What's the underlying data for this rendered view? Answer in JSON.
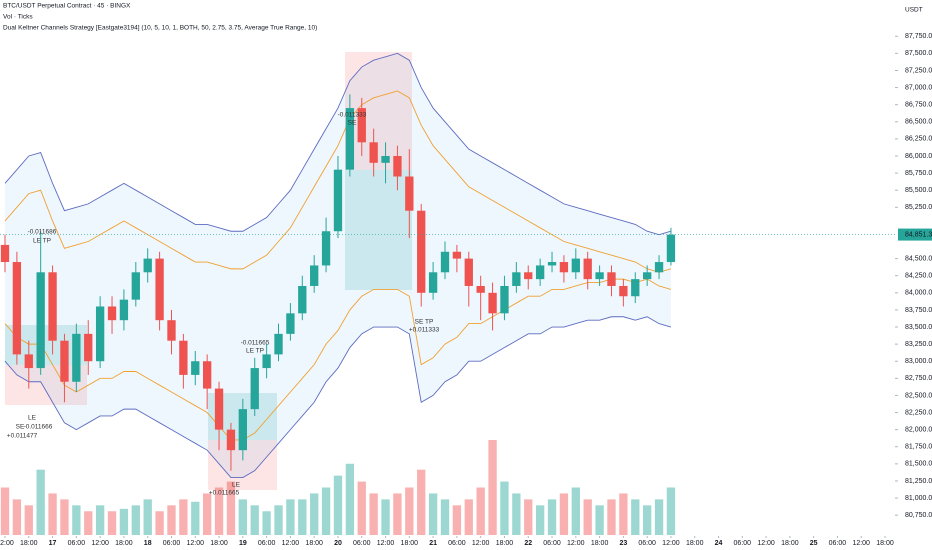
{
  "chart_data": {
    "type": "candlestick",
    "title": "BTC/USDT Perpetual Contract · 45 · BINGX",
    "indicators": [
      "Vol · Ticks",
      "Dual Keltner Channels Strategy [Eastgate3194] (10, 5, 10, 1, BOTH, 50, 2.75, 3.75, Average True Range, 10)"
    ],
    "currency": "USDT",
    "up_color": "#26a69a",
    "down_color": "#ef5350",
    "open": [
      84700,
      84450,
      83100,
      82900,
      84300,
      83300,
      82700,
      83400,
      83000,
      83800,
      83600,
      83900,
      84300,
      84500,
      83600,
      83300,
      82800,
      83000,
      82600,
      82000,
      81700,
      82300,
      82900,
      83100,
      83400,
      83700,
      84100,
      84400,
      84900,
      85800,
      86700,
      86200,
      85900,
      86000,
      85700,
      85200,
      84000,
      84300,
      84600,
      84500,
      84100,
      84000,
      83700,
      84100,
      84300,
      84200,
      84400,
      84450,
      84300,
      84500,
      84200,
      84300,
      84100,
      83950,
      84200,
      84300,
      84450
    ],
    "high": [
      84850,
      84600,
      83300,
      84900,
      84400,
      83400,
      83550,
      83600,
      83950,
      83950,
      84050,
      84450,
      84650,
      84600,
      83750,
      83400,
      83150,
      83100,
      82700,
      82100,
      82450,
      83050,
      83250,
      83550,
      83850,
      84250,
      84550,
      85100,
      86000,
      86900,
      86850,
      86400,
      86200,
      86150,
      86100,
      85300,
      84450,
      84750,
      84700,
      84600,
      84250,
      84150,
      84250,
      84450,
      84400,
      84500,
      84600,
      84550,
      84650,
      84600,
      84400,
      84400,
      84200,
      84300,
      84400,
      84550,
      84950
    ],
    "low": [
      84300,
      82950,
      82600,
      82800,
      83100,
      82400,
      82550,
      82800,
      82900,
      83400,
      83450,
      83800,
      84150,
      83450,
      83100,
      82600,
      82650,
      82300,
      81700,
      81400,
      81550,
      82200,
      82750,
      83000,
      83300,
      83600,
      84000,
      84300,
      84800,
      85700,
      86000,
      85700,
      85600,
      85500,
      84800,
      83800,
      83900,
      84200,
      84300,
      83800,
      83600,
      83450,
      83600,
      84000,
      84050,
      84100,
      84300,
      84150,
      84200,
      84050,
      84100,
      83950,
      83800,
      83850,
      84100,
      84200,
      84400
    ],
    "close": [
      84450,
      83100,
      82900,
      84300,
      83300,
      82700,
      83400,
      83000,
      83800,
      83600,
      83900,
      84300,
      84500,
      83600,
      83300,
      82800,
      83000,
      82600,
      82000,
      81700,
      82300,
      82900,
      83100,
      83400,
      83700,
      84100,
      84400,
      84900,
      85800,
      86700,
      86200,
      85900,
      86000,
      85700,
      85200,
      84000,
      84300,
      84600,
      84500,
      84100,
      84000,
      83700,
      84100,
      84300,
      84200,
      84400,
      84450,
      84300,
      84500,
      84200,
      84300,
      84100,
      83950,
      84200,
      84300,
      84450,
      84850
    ],
    "volume": [
      40,
      30,
      25,
      55,
      35,
      30,
      25,
      20,
      25,
      20,
      22,
      25,
      30,
      20,
      25,
      30,
      28,
      35,
      40,
      45,
      30,
      25,
      20,
      25,
      30,
      30,
      35,
      40,
      50,
      60,
      45,
      35,
      30,
      35,
      40,
      55,
      35,
      30,
      25,
      30,
      40,
      80,
      45,
      35,
      30,
      25,
      30,
      35,
      40,
      30,
      25,
      30,
      35,
      30,
      25,
      30,
      40
    ],
    "bands": [
      {
        "color": "#5c6bc0",
        "values": [
          85600,
          85800,
          86000,
          86050,
          85600,
          85200,
          85250,
          85300,
          85400,
          85500,
          85600,
          85500,
          85400,
          85300,
          85200,
          85100,
          85000,
          85000,
          84950,
          84900,
          84900,
          85000,
          85100,
          85300,
          85500,
          85800,
          86100,
          86400,
          86700,
          87100,
          87300,
          87400,
          87450,
          87500,
          87400,
          87000,
          86700,
          86500,
          86300,
          86100,
          86000,
          85900,
          85800,
          85700,
          85600,
          85500,
          85400,
          85300,
          85250,
          85200,
          85150,
          85100,
          85050,
          85000,
          84900,
          84850,
          84900
        ]
      },
      {
        "color": "#f0a030",
        "values": [
          85050,
          85250,
          85450,
          85500,
          85050,
          84650,
          84700,
          84750,
          84850,
          84950,
          85050,
          84950,
          84850,
          84750,
          84650,
          84550,
          84450,
          84450,
          84400,
          84350,
          84350,
          84450,
          84550,
          84750,
          84950,
          85250,
          85550,
          85850,
          86150,
          86550,
          86750,
          86850,
          86900,
          86950,
          86850,
          86450,
          86150,
          85950,
          85750,
          85550,
          85450,
          85350,
          85250,
          85150,
          85050,
          84950,
          84850,
          84750,
          84700,
          84650,
          84600,
          84550,
          84500,
          84450,
          84350,
          84300,
          84350
        ]
      },
      {
        "color": "#f0a030",
        "values": [
          83550,
          83350,
          83250,
          83250,
          82950,
          82650,
          82550,
          82650,
          82750,
          82750,
          82850,
          82850,
          82750,
          82650,
          82550,
          82450,
          82350,
          82250,
          82050,
          81850,
          81850,
          81950,
          82150,
          82350,
          82550,
          82750,
          82950,
          83250,
          83450,
          83750,
          83950,
          84050,
          84050,
          84050,
          83950,
          82950,
          83050,
          83250,
          83350,
          83550,
          83550,
          83650,
          83750,
          83850,
          83950,
          83950,
          84050,
          84050,
          84100,
          84150,
          84150,
          84200,
          84200,
          84150,
          84200,
          84100,
          84050
        ]
      },
      {
        "color": "#5c6bc0",
        "values": [
          83000,
          82800,
          82700,
          82700,
          82400,
          82100,
          82000,
          82100,
          82200,
          82200,
          82300,
          82300,
          82200,
          82100,
          82000,
          81900,
          81800,
          81700,
          81500,
          81300,
          81300,
          81400,
          81600,
          81800,
          82000,
          82200,
          82400,
          82700,
          82900,
          83200,
          83400,
          83500,
          83500,
          83500,
          83400,
          82400,
          82500,
          82700,
          82800,
          83000,
          83000,
          83100,
          83200,
          83300,
          83400,
          83400,
          83500,
          83500,
          83550,
          83600,
          83600,
          83650,
          83650,
          83600,
          83650,
          83550,
          83500
        ]
      }
    ],
    "last_price": {
      "value": 84851.3,
      "label": "84,851.3"
    },
    "ylim": [
      80460,
      88280
    ],
    "yticks": [
      {
        "value": 80750,
        "label": "80,750.0"
      },
      {
        "value": 81000,
        "label": "81,000.0"
      },
      {
        "value": 81250,
        "label": "81,250.0"
      },
      {
        "value": 81500,
        "label": "81,500.0"
      },
      {
        "value": 81750,
        "label": "81,750.0"
      },
      {
        "value": 82000,
        "label": "82,000.0"
      },
      {
        "value": 82250,
        "label": "82,250.0"
      },
      {
        "value": 82500,
        "label": "82,500.0"
      },
      {
        "value": 82750,
        "label": "82,750.0"
      },
      {
        "value": 83000,
        "label": "83,000.0"
      },
      {
        "value": 83250,
        "label": "83,250.0"
      },
      {
        "value": 83500,
        "label": "83,500.0"
      },
      {
        "value": 83750,
        "label": "83,750.0"
      },
      {
        "value": 84000,
        "label": "84,000.0"
      },
      {
        "value": 84250,
        "label": "84,250.0"
      },
      {
        "value": 84500,
        "label": "84,500.0"
      },
      {
        "value": 85250,
        "label": "85,250.0"
      },
      {
        "value": 85500,
        "label": "85,500.0"
      },
      {
        "value": 85750,
        "label": "85,750.0"
      },
      {
        "value": 86000,
        "label": "86,000.0"
      },
      {
        "value": 86250,
        "label": "86,250.0"
      },
      {
        "value": 86500,
        "label": "86,500.0"
      },
      {
        "value": 86750,
        "label": "86,750.0"
      },
      {
        "value": 87000,
        "label": "87,000.0"
      },
      {
        "value": 87250,
        "label": "87,250.0"
      },
      {
        "value": 87500,
        "label": "87,500.0"
      },
      {
        "value": 87750,
        "label": "87,750.0"
      }
    ],
    "xlim": [
      0,
      74
    ],
    "xticks": [
      {
        "value": 0,
        "label": "12:00"
      },
      {
        "value": 2,
        "label": "18:00"
      },
      {
        "value": 4,
        "label": "17"
      },
      {
        "value": 6,
        "label": "06:00"
      },
      {
        "value": 8,
        "label": "12:00"
      },
      {
        "value": 10,
        "label": "18:00"
      },
      {
        "value": 12,
        "label": "18"
      },
      {
        "value": 14,
        "label": "06:00"
      },
      {
        "value": 16,
        "label": "12:00"
      },
      {
        "value": 18,
        "label": "18:00"
      },
      {
        "value": 20,
        "label": "19"
      },
      {
        "value": 22,
        "label": "06:00"
      },
      {
        "value": 24,
        "label": "12:00"
      },
      {
        "value": 26,
        "label": "18:00"
      },
      {
        "value": 28,
        "label": "20"
      },
      {
        "value": 30,
        "label": "06:00"
      },
      {
        "value": 32,
        "label": "12:00"
      },
      {
        "value": 34,
        "label": "18:00"
      },
      {
        "value": 36,
        "label": "21"
      },
      {
        "value": 38,
        "label": "06:00"
      },
      {
        "value": 40,
        "label": "12:00"
      },
      {
        "value": 42,
        "label": "18:00"
      },
      {
        "value": 44,
        "label": "22"
      },
      {
        "value": 46,
        "label": "06:00"
      },
      {
        "value": 48,
        "label": "12:00"
      },
      {
        "value": 50,
        "label": "18:00"
      },
      {
        "value": 52,
        "label": "23"
      },
      {
        "value": 54,
        "label": "06:00"
      },
      {
        "value": 56,
        "label": "12:00"
      },
      {
        "value": 58,
        "label": "18:00"
      },
      {
        "value": 60,
        "label": "24"
      },
      {
        "value": 62,
        "label": "06:00"
      },
      {
        "value": 64,
        "label": "12:00"
      },
      {
        "value": 66,
        "label": "18:00"
      },
      {
        "value": 68,
        "label": "25"
      },
      {
        "value": 70,
        "label": "06:00"
      },
      {
        "value": 72,
        "label": "12:00"
      },
      {
        "value": 74,
        "label": "18:00"
      }
    ],
    "annotations": [
      "-0.011686",
      "LE TP",
      "-0.011333",
      "SE",
      "SE TP",
      "+0.011333",
      "-0.011665",
      "LE TP",
      "LE",
      "+0.011665",
      "LE",
      "SE",
      "-0.011666",
      "+0.011477"
    ]
  }
}
